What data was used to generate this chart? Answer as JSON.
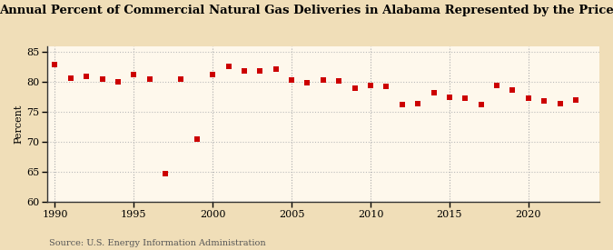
{
  "title": "Annual Percent of Commercial Natural Gas Deliveries in Alabama Represented by the Price",
  "ylabel": "Percent",
  "source": "Source: U.S. Energy Information Administration",
  "background_color": "#f5e6c8",
  "plot_bg_color": "#fdf5e0",
  "marker_color": "#cc0000",
  "marker": "s",
  "marker_size": 4,
  "xlim": [
    1989.5,
    2024.5
  ],
  "ylim": [
    60,
    86
  ],
  "yticks": [
    60,
    65,
    70,
    75,
    80,
    85
  ],
  "xticks": [
    1990,
    1995,
    2000,
    2005,
    2010,
    2015,
    2020
  ],
  "grid_color": "#bbbbbb",
  "vgrid_color": "#aaaaaa",
  "years": [
    1990,
    1991,
    1992,
    1993,
    1994,
    1995,
    1996,
    1997,
    1998,
    1999,
    2000,
    2001,
    2002,
    2003,
    2004,
    2005,
    2006,
    2007,
    2008,
    2009,
    2010,
    2011,
    2012,
    2013,
    2014,
    2015,
    2016,
    2017,
    2018,
    2019,
    2020,
    2021,
    2022,
    2023
  ],
  "values": [
    83.0,
    80.6,
    81.0,
    80.5,
    80.0,
    81.2,
    80.5,
    64.7,
    80.5,
    70.5,
    81.3,
    82.7,
    81.8,
    81.9,
    82.2,
    80.3,
    79.9,
    80.3,
    80.2,
    79.0,
    79.5,
    79.3,
    76.2,
    76.4,
    78.3,
    77.5,
    77.3,
    76.2,
    79.4,
    78.7,
    77.4,
    76.9,
    76.4,
    77.0
  ]
}
